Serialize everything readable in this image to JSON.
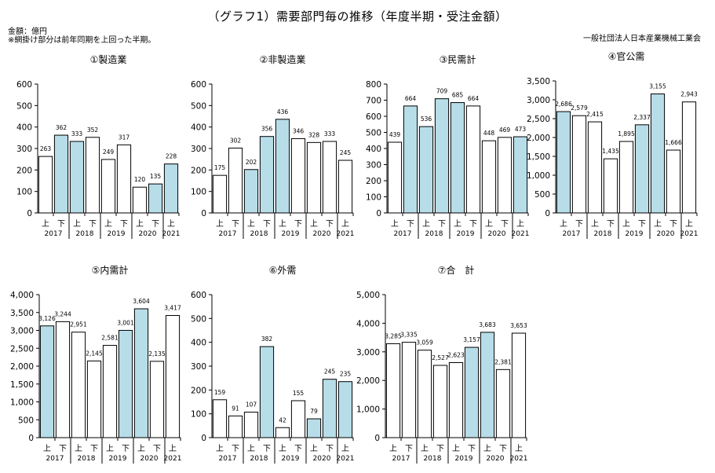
{
  "header": {
    "title": "（グラフ1）需要部門毎の推移（年度半期・受注金額）",
    "unit_note": "金額：億円",
    "hatch_note": "※網掛け部分は前年同期を上回った半期。",
    "organization": "一般社団法人日本産業機械工業会"
  },
  "colors": {
    "highlight_fill": "#b7dde8",
    "plain_fill": "#ffffff",
    "bar_stroke": "#000000"
  },
  "chart_data": [
    {
      "type": "bar",
      "title": "①製造業",
      "categories": [
        "上",
        "下",
        "上",
        "下",
        "上",
        "下",
        "上",
        "下",
        "上"
      ],
      "years": [
        "2017",
        "2018",
        "2019",
        "2020",
        "2021"
      ],
      "values": [
        263,
        362,
        333,
        352,
        249,
        317,
        120,
        135,
        228
      ],
      "highlighted": [
        false,
        true,
        true,
        false,
        false,
        false,
        false,
        true,
        true
      ],
      "ylim": [
        0,
        600
      ],
      "yticks": [
        0,
        100,
        200,
        300,
        400,
        500,
        600
      ],
      "ytick_labels": [
        "0",
        "100",
        "200",
        "300",
        "400",
        "500",
        "600"
      ],
      "value_labels": [
        "263",
        "362",
        "333",
        "352",
        "249",
        "317",
        "120",
        "135",
        "228"
      ]
    },
    {
      "type": "bar",
      "title": "②非製造業",
      "categories": [
        "上",
        "下",
        "上",
        "下",
        "上",
        "下",
        "上",
        "下",
        "上"
      ],
      "years": [
        "2017",
        "2018",
        "2019",
        "2020",
        "2021"
      ],
      "values": [
        175,
        302,
        202,
        356,
        436,
        346,
        328,
        333,
        245
      ],
      "highlighted": [
        false,
        false,
        true,
        true,
        true,
        false,
        false,
        false,
        false
      ],
      "ylim": [
        0,
        600
      ],
      "yticks": [
        0,
        100,
        200,
        300,
        400,
        500,
        600
      ],
      "ytick_labels": [
        "0",
        "100",
        "200",
        "300",
        "400",
        "500",
        "600"
      ],
      "value_labels": [
        "175",
        "302",
        "202",
        "356",
        "436",
        "346",
        "328",
        "333",
        "245"
      ]
    },
    {
      "type": "bar",
      "title": "③民需計",
      "categories": [
        "上",
        "下",
        "上",
        "下",
        "上",
        "下",
        "上",
        "下",
        "上"
      ],
      "years": [
        "2017",
        "2018",
        "2019",
        "2020",
        "2021"
      ],
      "values": [
        439,
        664,
        536,
        709,
        685,
        664,
        448,
        469,
        473
      ],
      "highlighted": [
        false,
        true,
        true,
        true,
        true,
        false,
        false,
        false,
        true
      ],
      "ylim": [
        0,
        800
      ],
      "yticks": [
        0,
        100,
        200,
        300,
        400,
        500,
        600,
        700,
        800
      ],
      "ytick_labels": [
        "0",
        "100",
        "200",
        "300",
        "400",
        "500",
        "600",
        "700",
        "800"
      ],
      "value_labels": [
        "439",
        "664",
        "536",
        "709",
        "685",
        "664",
        "448",
        "469",
        "473"
      ]
    },
    {
      "type": "bar",
      "title": "④官公需",
      "categories": [
        "上",
        "下",
        "上",
        "下",
        "上",
        "下",
        "上",
        "下",
        "上"
      ],
      "years": [
        "2017",
        "2018",
        "2019",
        "2020",
        "2021"
      ],
      "values": [
        2686,
        2579,
        2415,
        1435,
        1895,
        2337,
        3155,
        1666,
        2943
      ],
      "highlighted": [
        true,
        false,
        false,
        false,
        false,
        true,
        true,
        false,
        false
      ],
      "ylim": [
        0,
        3500
      ],
      "yticks": [
        0,
        500,
        1000,
        1500,
        2000,
        2500,
        3000,
        3500
      ],
      "ytick_labels": [
        "0",
        "500",
        "1,000",
        "1,500",
        "2,000",
        "2,500",
        "3,000",
        "3,500"
      ],
      "value_labels": [
        "2,686",
        "2,579",
        "2,415",
        "1,435",
        "1,895",
        "2,337",
        "3,155",
        "1,666",
        "2,943"
      ]
    },
    {
      "type": "bar",
      "title": "⑤内需計",
      "categories": [
        "上",
        "下",
        "上",
        "下",
        "上",
        "下",
        "上",
        "下",
        "上"
      ],
      "years": [
        "2017",
        "2018",
        "2019",
        "2020",
        "2021"
      ],
      "values": [
        3126,
        3244,
        2951,
        2145,
        2581,
        3001,
        3604,
        2135,
        3417
      ],
      "highlighted": [
        true,
        false,
        false,
        false,
        false,
        true,
        true,
        false,
        false
      ],
      "ylim": [
        0,
        4000
      ],
      "yticks": [
        0,
        500,
        1000,
        1500,
        2000,
        2500,
        3000,
        3500,
        4000
      ],
      "ytick_labels": [
        "0",
        "500",
        "1,000",
        "1,500",
        "2,000",
        "2,500",
        "3,000",
        "3,500",
        "4,000"
      ],
      "value_labels": [
        "3,126",
        "3,244",
        "2,951",
        "2,145",
        "2,581",
        "3,001",
        "3,604",
        "2,135",
        "3,417"
      ]
    },
    {
      "type": "bar",
      "title": "⑥外需",
      "categories": [
        "上",
        "下",
        "上",
        "下",
        "上",
        "下",
        "上",
        "下",
        "上"
      ],
      "years": [
        "2017",
        "2018",
        "2019",
        "2020",
        "2021"
      ],
      "values": [
        159,
        91,
        107,
        382,
        42,
        155,
        79,
        245,
        235
      ],
      "highlighted": [
        false,
        false,
        false,
        true,
        false,
        false,
        true,
        true,
        true
      ],
      "ylim": [
        0,
        600
      ],
      "yticks": [
        0,
        100,
        200,
        300,
        400,
        500,
        600
      ],
      "ytick_labels": [
        "0",
        "100",
        "200",
        "300",
        "400",
        "500",
        "600"
      ],
      "value_labels": [
        "159",
        "91",
        "107",
        "382",
        "42",
        "155",
        "79",
        "245",
        "235"
      ]
    },
    {
      "type": "bar",
      "title": "⑦合　計",
      "categories": [
        "上",
        "下",
        "上",
        "下",
        "上",
        "下",
        "上",
        "下",
        "上"
      ],
      "years": [
        "2017",
        "2018",
        "2019",
        "2020",
        "2021"
      ],
      "values": [
        3285,
        3335,
        3059,
        2527,
        2623,
        3157,
        3683,
        2381,
        3653
      ],
      "highlighted": [
        false,
        false,
        false,
        false,
        false,
        true,
        true,
        false,
        false
      ],
      "ylim": [
        0,
        5000
      ],
      "yticks": [
        0,
        1000,
        2000,
        3000,
        4000,
        5000
      ],
      "ytick_labels": [
        "0",
        "1,000",
        "2,000",
        "3,000",
        "4,000",
        "5,000"
      ],
      "value_labels": [
        "3,285",
        "3,335",
        "3,059",
        "2,527",
        "2,623",
        "3,157",
        "3,683",
        "2,381",
        "3,653"
      ]
    }
  ]
}
